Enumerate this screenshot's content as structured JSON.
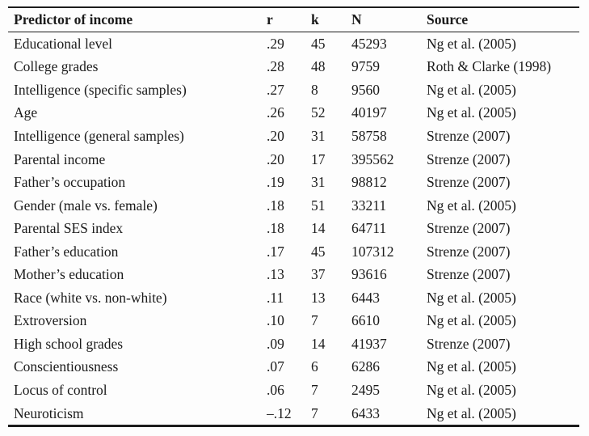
{
  "table": {
    "columns": [
      {
        "key": "predictor",
        "label": "Predictor of income"
      },
      {
        "key": "r",
        "label": "r"
      },
      {
        "key": "k",
        "label": "k"
      },
      {
        "key": "n",
        "label": "N"
      },
      {
        "key": "source",
        "label": "Source"
      }
    ],
    "rows": [
      [
        "Educational level",
        ".29",
        "45",
        "45293",
        "Ng et al. (2005)"
      ],
      [
        "College grades",
        ".28",
        "48",
        "9759",
        "Roth & Clarke (1998)"
      ],
      [
        "Intelligence (specific samples)",
        ".27",
        "8",
        "9560",
        "Ng et al. (2005)"
      ],
      [
        "Age",
        ".26",
        "52",
        "40197",
        "Ng et al. (2005)"
      ],
      [
        "Intelligence (general samples)",
        ".20",
        "31",
        "58758",
        "Strenze (2007)"
      ],
      [
        "Parental income",
        ".20",
        "17",
        "395562",
        "Strenze (2007)"
      ],
      [
        "Father’s occupation",
        ".19",
        "31",
        "98812",
        "Strenze (2007)"
      ],
      [
        "Gender (male vs. female)",
        ".18",
        "51",
        "33211",
        "Ng et al. (2005)"
      ],
      [
        "Parental SES index",
        ".18",
        "14",
        "64711",
        "Strenze (2007)"
      ],
      [
        "Father’s education",
        ".17",
        "45",
        "107312",
        "Strenze (2007)"
      ],
      [
        "Mother’s education",
        ".13",
        "37",
        "93616",
        "Strenze (2007)"
      ],
      [
        "Race (white vs. non-white)",
        ".11",
        "13",
        "6443",
        "Ng et al. (2005)"
      ],
      [
        "Extroversion",
        ".10",
        "7",
        "6610",
        "Ng et al. (2005)"
      ],
      [
        "High school grades",
        ".09",
        "14",
        "41937",
        "Strenze (2007)"
      ],
      [
        "Conscientiousness",
        ".07",
        "6",
        "6286",
        "Ng et al. (2005)"
      ],
      [
        "Locus of control",
        ".06",
        "7",
        "2495",
        "Ng et al. (2005)"
      ],
      [
        "Neuroticism",
        "–.12",
        "7",
        "6433",
        "Ng et al. (2005)"
      ]
    ]
  }
}
